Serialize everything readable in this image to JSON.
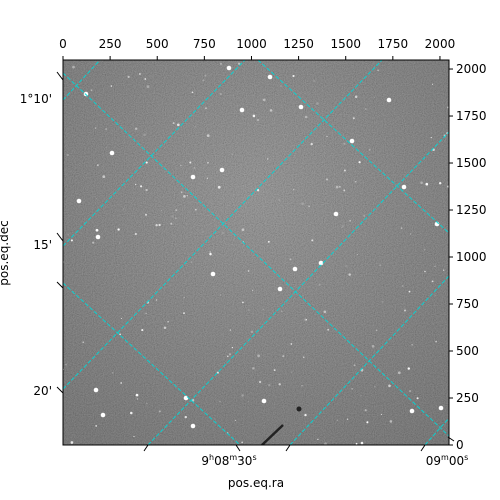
{
  "chart_data": {
    "type": "image",
    "title": "",
    "xlabel": "pos.eq.ra",
    "ylabel": "pos.eq.dec",
    "pixel_axes": {
      "xlim": [
        0,
        2048
      ],
      "ylim": [
        0,
        2048
      ],
      "x_ticks": [
        0,
        250,
        500,
        750,
        1000,
        1250,
        1500,
        1750,
        2000
      ],
      "y_ticks": [
        0,
        250,
        500,
        750,
        1000,
        1250,
        1500,
        1750,
        2000
      ]
    },
    "ra_ticks": [
      {
        "label_h": "9",
        "label_hs": "h",
        "label_m": "08",
        "label_ms": "m",
        "label_s": "30",
        "label_ss": "s"
      },
      {
        "label_m": "09",
        "label_ms": "m",
        "label_s": "00",
        "label_ss": "s"
      }
    ],
    "dec_ticks": [
      "1°10'",
      "15'",
      "20'"
    ],
    "grid": true,
    "grid_color": "#00d8d8",
    "image_colormap": "gray"
  }
}
